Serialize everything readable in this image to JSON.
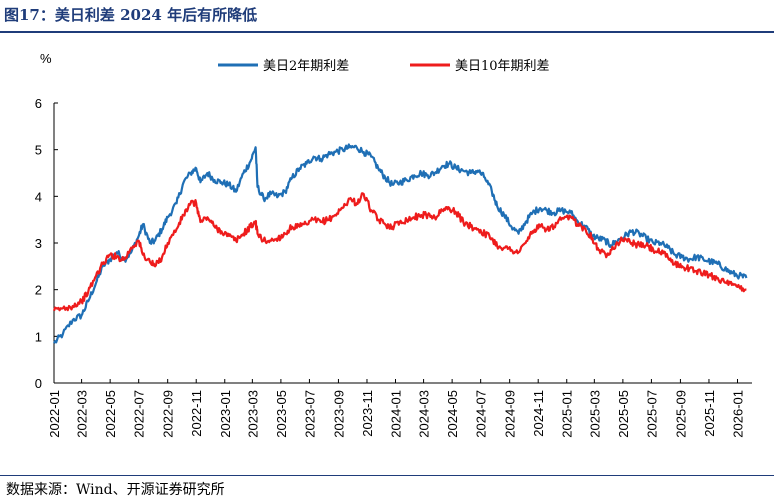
{
  "title": "图17：美日利差 2024 年后有所降低",
  "source": "数据来源：Wind、开源证券研究所",
  "chart_data": {
    "type": "line",
    "y_unit": "%",
    "ylim": [
      0,
      6
    ],
    "yticks": [
      "0",
      "1",
      "2",
      "3",
      "4",
      "5",
      "6"
    ],
    "xticks": [
      "2022-01",
      "2022-03",
      "2022-05",
      "2022-07",
      "2022-09",
      "2022-11",
      "2023-01",
      "2023-03",
      "2023-05",
      "2023-07",
      "2023-09",
      "2023-11",
      "2024-01",
      "2024-03",
      "2024-05",
      "2024-07",
      "2024-09",
      "2024-11",
      "2025-01",
      "2025-03",
      "2025-05",
      "2025-07",
      "2025-09",
      "2025-11",
      "2026-01"
    ],
    "xrange": [
      "2022-01-01",
      "2026-02-01"
    ],
    "legend_position": "top",
    "grid": false,
    "series": [
      {
        "name": "美日2年期利差",
        "color": "#1f6fb5",
        "points": [
          [
            "2022-01-01",
            0.85
          ],
          [
            "2022-01-20",
            1.05
          ],
          [
            "2022-02-10",
            1.35
          ],
          [
            "2022-03-01",
            1.45
          ],
          [
            "2022-03-15",
            1.75
          ],
          [
            "2022-04-01",
            2.15
          ],
          [
            "2022-04-15",
            2.5
          ],
          [
            "2022-05-01",
            2.65
          ],
          [
            "2022-05-15",
            2.8
          ],
          [
            "2022-06-01",
            2.65
          ],
          [
            "2022-06-15",
            2.8
          ],
          [
            "2022-07-01",
            3.15
          ],
          [
            "2022-07-10",
            3.4
          ],
          [
            "2022-07-25",
            3.0
          ],
          [
            "2022-08-05",
            3.05
          ],
          [
            "2022-08-20",
            3.3
          ],
          [
            "2022-09-01",
            3.55
          ],
          [
            "2022-09-20",
            3.85
          ],
          [
            "2022-10-05",
            4.3
          ],
          [
            "2022-10-20",
            4.5
          ],
          [
            "2022-11-01",
            4.6
          ],
          [
            "2022-11-10",
            4.3
          ],
          [
            "2022-11-25",
            4.5
          ],
          [
            "2022-12-10",
            4.35
          ],
          [
            "2022-12-25",
            4.3
          ],
          [
            "2023-01-10",
            4.25
          ],
          [
            "2023-01-25",
            4.1
          ],
          [
            "2023-02-10",
            4.5
          ],
          [
            "2023-02-25",
            4.75
          ],
          [
            "2023-03-08",
            5.05
          ],
          [
            "2023-03-12",
            4.2
          ],
          [
            "2023-03-25",
            3.95
          ],
          [
            "2023-04-10",
            4.05
          ],
          [
            "2023-04-25",
            4.0
          ],
          [
            "2023-05-10",
            4.1
          ],
          [
            "2023-05-25",
            4.4
          ],
          [
            "2023-06-10",
            4.6
          ],
          [
            "2023-06-25",
            4.7
          ],
          [
            "2023-07-10",
            4.85
          ],
          [
            "2023-07-25",
            4.8
          ],
          [
            "2023-08-10",
            4.9
          ],
          [
            "2023-08-25",
            4.95
          ],
          [
            "2023-09-10",
            5.0
          ],
          [
            "2023-09-25",
            5.05
          ],
          [
            "2023-10-10",
            5.05
          ],
          [
            "2023-10-25",
            4.95
          ],
          [
            "2023-11-10",
            4.85
          ],
          [
            "2023-11-25",
            4.6
          ],
          [
            "2023-12-10",
            4.4
          ],
          [
            "2023-12-25",
            4.25
          ],
          [
            "2024-01-10",
            4.3
          ],
          [
            "2024-01-25",
            4.35
          ],
          [
            "2024-02-10",
            4.45
          ],
          [
            "2024-02-25",
            4.5
          ],
          [
            "2024-03-10",
            4.45
          ],
          [
            "2024-03-25",
            4.5
          ],
          [
            "2024-04-10",
            4.65
          ],
          [
            "2024-04-25",
            4.7
          ],
          [
            "2024-05-10",
            4.6
          ],
          [
            "2024-05-25",
            4.55
          ],
          [
            "2024-06-10",
            4.5
          ],
          [
            "2024-06-25",
            4.55
          ],
          [
            "2024-07-10",
            4.4
          ],
          [
            "2024-07-25",
            4.1
          ],
          [
            "2024-08-05",
            3.8
          ],
          [
            "2024-08-20",
            3.6
          ],
          [
            "2024-09-05",
            3.35
          ],
          [
            "2024-09-20",
            3.2
          ],
          [
            "2024-10-05",
            3.45
          ],
          [
            "2024-10-20",
            3.65
          ],
          [
            "2024-11-05",
            3.75
          ],
          [
            "2024-11-20",
            3.7
          ],
          [
            "2024-12-05",
            3.65
          ],
          [
            "2024-12-20",
            3.7
          ],
          [
            "2025-01-10",
            3.65
          ],
          [
            "2025-01-25",
            3.45
          ],
          [
            "2025-02-10",
            3.35
          ],
          [
            "2025-02-25",
            3.15
          ],
          [
            "2025-03-10",
            3.1
          ],
          [
            "2025-03-25",
            3.05
          ],
          [
            "2025-04-05",
            2.95
          ],
          [
            "2025-04-20",
            3.05
          ],
          [
            "2025-05-05",
            3.15
          ],
          [
            "2025-05-20",
            3.25
          ],
          [
            "2025-06-05",
            3.2
          ],
          [
            "2025-06-20",
            3.1
          ],
          [
            "2025-07-05",
            3.0
          ],
          [
            "2025-07-20",
            3.0
          ],
          [
            "2025-08-05",
            2.9
          ],
          [
            "2025-08-20",
            2.75
          ],
          [
            "2025-09-05",
            2.7
          ],
          [
            "2025-09-20",
            2.65
          ],
          [
            "2025-10-05",
            2.7
          ],
          [
            "2025-10-20",
            2.65
          ],
          [
            "2025-11-05",
            2.6
          ],
          [
            "2025-11-20",
            2.55
          ],
          [
            "2025-12-05",
            2.45
          ],
          [
            "2025-12-20",
            2.35
          ],
          [
            "2026-01-05",
            2.3
          ],
          [
            "2026-01-20",
            2.25
          ]
        ]
      },
      {
        "name": "美日10年期利差",
        "color": "#ee1c1c",
        "points": [
          [
            "2022-01-01",
            1.55
          ],
          [
            "2022-01-20",
            1.6
          ],
          [
            "2022-02-10",
            1.65
          ],
          [
            "2022-03-01",
            1.75
          ],
          [
            "2022-03-15",
            1.95
          ],
          [
            "2022-04-01",
            2.3
          ],
          [
            "2022-04-15",
            2.55
          ],
          [
            "2022-05-01",
            2.75
          ],
          [
            "2022-05-15",
            2.7
          ],
          [
            "2022-06-01",
            2.65
          ],
          [
            "2022-06-15",
            2.9
          ],
          [
            "2022-07-01",
            3.05
          ],
          [
            "2022-07-10",
            2.75
          ],
          [
            "2022-07-25",
            2.6
          ],
          [
            "2022-08-05",
            2.5
          ],
          [
            "2022-08-20",
            2.7
          ],
          [
            "2022-09-01",
            3.0
          ],
          [
            "2022-09-20",
            3.3
          ],
          [
            "2022-10-05",
            3.6
          ],
          [
            "2022-10-20",
            3.85
          ],
          [
            "2022-11-01",
            3.85
          ],
          [
            "2022-11-10",
            3.45
          ],
          [
            "2022-11-25",
            3.55
          ],
          [
            "2022-12-10",
            3.35
          ],
          [
            "2022-12-25",
            3.25
          ],
          [
            "2023-01-10",
            3.15
          ],
          [
            "2023-01-25",
            3.05
          ],
          [
            "2023-02-10",
            3.2
          ],
          [
            "2023-02-25",
            3.35
          ],
          [
            "2023-03-08",
            3.45
          ],
          [
            "2023-03-12",
            3.2
          ],
          [
            "2023-03-25",
            3.05
          ],
          [
            "2023-04-10",
            3.05
          ],
          [
            "2023-04-25",
            3.1
          ],
          [
            "2023-05-10",
            3.2
          ],
          [
            "2023-05-25",
            3.35
          ],
          [
            "2023-06-10",
            3.35
          ],
          [
            "2023-06-25",
            3.4
          ],
          [
            "2023-07-10",
            3.5
          ],
          [
            "2023-07-25",
            3.45
          ],
          [
            "2023-08-10",
            3.5
          ],
          [
            "2023-08-25",
            3.6
          ],
          [
            "2023-09-10",
            3.75
          ],
          [
            "2023-09-25",
            3.95
          ],
          [
            "2023-10-10",
            3.85
          ],
          [
            "2023-10-25",
            4.05
          ],
          [
            "2023-11-10",
            3.7
          ],
          [
            "2023-11-25",
            3.5
          ],
          [
            "2023-12-10",
            3.4
          ],
          [
            "2023-12-25",
            3.35
          ],
          [
            "2024-01-10",
            3.45
          ],
          [
            "2024-01-25",
            3.5
          ],
          [
            "2024-02-10",
            3.55
          ],
          [
            "2024-02-25",
            3.6
          ],
          [
            "2024-03-10",
            3.6
          ],
          [
            "2024-03-25",
            3.55
          ],
          [
            "2024-04-10",
            3.7
          ],
          [
            "2024-04-25",
            3.75
          ],
          [
            "2024-05-10",
            3.65
          ],
          [
            "2024-05-25",
            3.45
          ],
          [
            "2024-06-10",
            3.35
          ],
          [
            "2024-06-25",
            3.3
          ],
          [
            "2024-07-10",
            3.2
          ],
          [
            "2024-07-25",
            3.1
          ],
          [
            "2024-08-05",
            2.95
          ],
          [
            "2024-08-20",
            2.9
          ],
          [
            "2024-09-05",
            2.85
          ],
          [
            "2024-09-20",
            2.8
          ],
          [
            "2024-10-05",
            3.0
          ],
          [
            "2024-10-20",
            3.25
          ],
          [
            "2024-11-05",
            3.35
          ],
          [
            "2024-11-20",
            3.3
          ],
          [
            "2024-12-05",
            3.35
          ],
          [
            "2024-12-20",
            3.5
          ],
          [
            "2025-01-10",
            3.55
          ],
          [
            "2025-01-25",
            3.4
          ],
          [
            "2025-02-10",
            3.3
          ],
          [
            "2025-02-25",
            3.1
          ],
          [
            "2025-03-10",
            2.85
          ],
          [
            "2025-03-25",
            2.75
          ],
          [
            "2025-04-05",
            2.85
          ],
          [
            "2025-04-20",
            3.0
          ],
          [
            "2025-05-05",
            3.1
          ],
          [
            "2025-05-20",
            3.0
          ],
          [
            "2025-06-05",
            2.95
          ],
          [
            "2025-06-20",
            2.95
          ],
          [
            "2025-07-05",
            2.85
          ],
          [
            "2025-07-20",
            2.8
          ],
          [
            "2025-08-05",
            2.7
          ],
          [
            "2025-08-20",
            2.55
          ],
          [
            "2025-09-05",
            2.5
          ],
          [
            "2025-09-20",
            2.45
          ],
          [
            "2025-10-05",
            2.4
          ],
          [
            "2025-10-20",
            2.35
          ],
          [
            "2025-11-05",
            2.3
          ],
          [
            "2025-11-20",
            2.25
          ],
          [
            "2025-12-05",
            2.15
          ],
          [
            "2025-12-20",
            2.1
          ],
          [
            "2026-01-05",
            2.05
          ],
          [
            "2026-01-20",
            2.0
          ]
        ]
      }
    ]
  }
}
